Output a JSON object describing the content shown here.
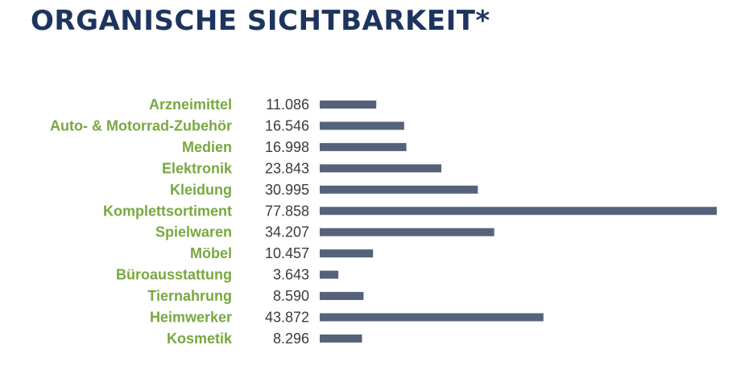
{
  "title": "ORGANISCHE SICHTBARKEIT*",
  "colors": {
    "title": "#1d355e",
    "category_label": "#78a83f",
    "bar": "#56627a",
    "value_text": "#3c3c3c"
  },
  "chart_data": {
    "type": "bar",
    "orientation": "horizontal",
    "title": "ORGANISCHE SICHTBARKEIT*",
    "categories": [
      "Arzneimittel",
      "Auto- & Motorrad-Zubehör",
      "Medien",
      "Elektronik",
      "Kleidung",
      "Komplettsortiment",
      "Spielwaren",
      "Möbel",
      "Büroausstattung",
      "Tiernahrung",
      "Heimwerker",
      "Kosmetik"
    ],
    "values": [
      11086,
      16546,
      16998,
      23843,
      30995,
      77858,
      34207,
      10457,
      3643,
      8590,
      43872,
      8296
    ],
    "value_labels": [
      "11.086",
      "16.546",
      "16.998",
      "23.843",
      "30.995",
      "77.858",
      "34.207",
      "10.457",
      "3.643",
      "8.590",
      "43.872",
      "8.296"
    ],
    "xlim": [
      0,
      77858
    ],
    "grid": false,
    "legend": "none"
  }
}
